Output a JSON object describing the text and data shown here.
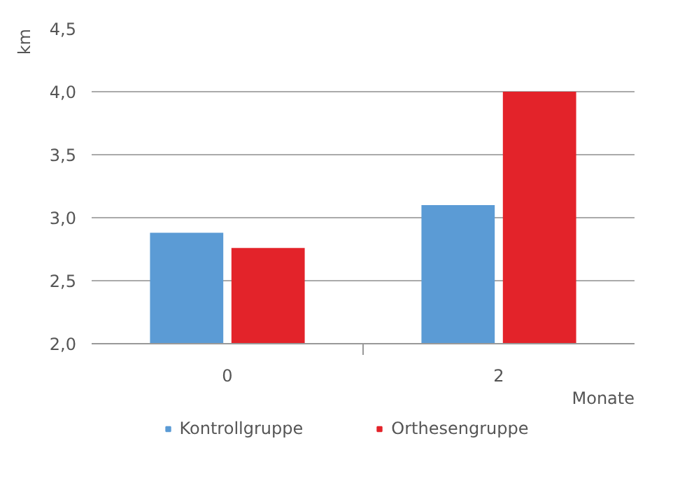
{
  "chart_data": {
    "type": "bar",
    "categories": [
      "0",
      "2"
    ],
    "xlabel": "Monate",
    "ylabel": "km",
    "series": [
      {
        "name": "Kontrollgruppe",
        "color": "#5b9bd5",
        "values": [
          2.88,
          3.1
        ]
      },
      {
        "name": "Orthesengruppe",
        "color": "#e3232a",
        "values": [
          2.76,
          4.0
        ]
      }
    ],
    "ylim": [
      2.0,
      4.5
    ],
    "yticks": [
      {
        "value": 2.0,
        "label": "2,0"
      },
      {
        "value": 2.5,
        "label": "2,5"
      },
      {
        "value": 3.0,
        "label": "3,0"
      },
      {
        "value": 3.5,
        "label": "3,5"
      },
      {
        "value": 4.0,
        "label": "4,0"
      },
      {
        "value": 4.5,
        "label": "4,5"
      }
    ],
    "grid": "y",
    "legend": "bottom"
  }
}
